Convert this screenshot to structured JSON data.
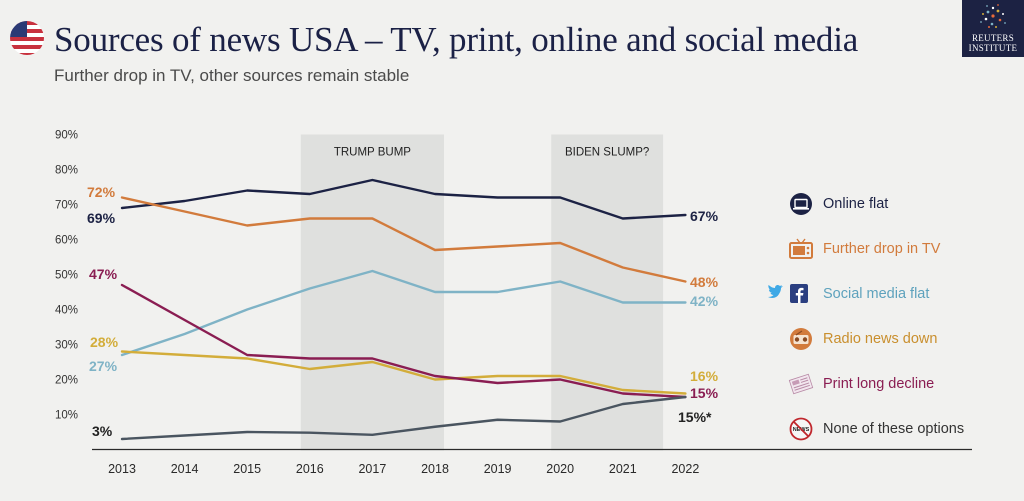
{
  "header": {
    "title": "Sources of news USA – TV, print, online and social media",
    "subtitle": "Further drop in TV, other sources remain stable"
  },
  "logo": {
    "line1": "REUTERS",
    "line2": "INSTITUTE"
  },
  "chart_data": {
    "type": "line",
    "x": [
      2013,
      2014,
      2015,
      2016,
      2017,
      2018,
      2019,
      2020,
      2021,
      2022
    ],
    "ylim": [
      0,
      90
    ],
    "yticks": [
      "10%",
      "20%",
      "30%",
      "40%",
      "50%",
      "60%",
      "70%",
      "80%",
      "90%"
    ],
    "bands": [
      {
        "label": "TRUMP BUMP",
        "from": 2016,
        "to": 2018
      },
      {
        "label": "BIDEN SLUMP?",
        "from": 2020,
        "to": 2021.5
      }
    ],
    "series": [
      {
        "name": "Online flat",
        "color": "#1c2244",
        "icon": "laptop-icon",
        "values": [
          69,
          71,
          74,
          73,
          77,
          73,
          72,
          72,
          66,
          67
        ],
        "start_label": "69%",
        "end_label": "67%"
      },
      {
        "name": "Further drop in TV",
        "color": "#d27b3c",
        "icon": "tv-icon",
        "values": [
          72,
          68,
          64,
          66,
          66,
          57,
          58,
          59,
          52,
          48
        ],
        "start_label": "72%",
        "end_label": "48%"
      },
      {
        "name": "Social media flat",
        "color": "#7fb3c6",
        "icon": "twitter-facebook-icon",
        "values": [
          27,
          33,
          40,
          46,
          51,
          45,
          45,
          48,
          42,
          42
        ],
        "start_label": "27%",
        "end_label": "42%"
      },
      {
        "name": "Radio news down",
        "color": "#d3ad3a",
        "icon": "radio-icon",
        "values": [
          28,
          27,
          26,
          23,
          25,
          20,
          21,
          21,
          17,
          16
        ],
        "start_label": "28%",
        "end_label": "16%"
      },
      {
        "name": "Print long decline",
        "color": "#8a1d52",
        "icon": "newspaper-icon",
        "values": [
          47,
          37,
          27,
          26,
          26,
          21,
          19,
          20,
          16,
          15
        ],
        "start_label": "47%",
        "end_label": "15%"
      },
      {
        "name": "None of these options",
        "color": "#4a5560",
        "icon": "no-news-icon",
        "values": [
          3,
          4,
          5,
          4.8,
          4.2,
          6.5,
          8.5,
          8,
          13,
          15
        ],
        "start_label": "3%",
        "end_label": "15%*"
      }
    ]
  }
}
